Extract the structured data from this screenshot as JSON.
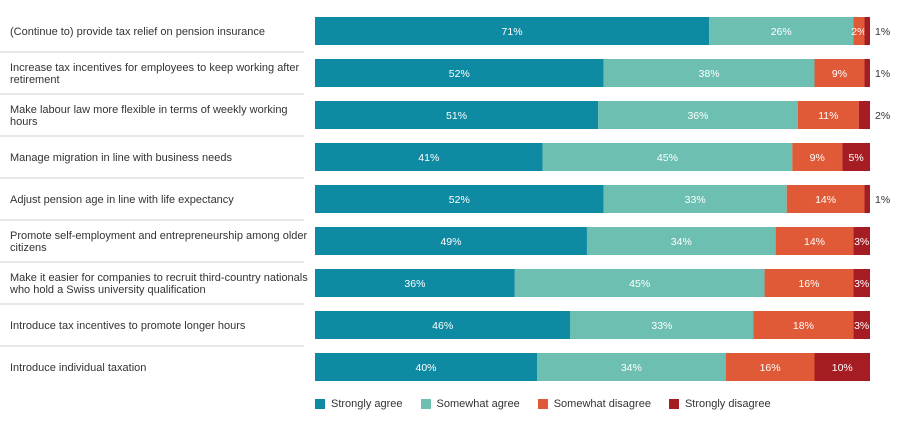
{
  "chart_data": {
    "type": "bar",
    "orientation": "horizontal",
    "stacked": true,
    "categories": [
      "(Continue to) provide tax relief on pension insurance",
      "Increase tax incentives for employees to keep working after retirement",
      "Make labour law more flexible in terms of weekly working hours",
      "Manage migration in line with business needs",
      "Adjust pension age in line with life expectancy",
      "Promote self-employment and entrepreneurship among older citizens",
      "Make it easier for companies to recruit third-country nationals who hold a Swiss university qualification",
      "Introduce tax incentives to promote longer hours",
      "Introduce individual taxation"
    ],
    "category_lines": [
      [
        "(Continue to) provide tax relief on pension insurance"
      ],
      [
        "Increase tax incentives for employees to keep working after",
        "retirement"
      ],
      [
        "Make labour law more flexible in terms of weekly working",
        "hours"
      ],
      [
        "Manage migration in line with business needs"
      ],
      [
        "Adjust pension age in line with life expectancy"
      ],
      [
        "Promote self-employment and entrepreneurship among older",
        "citizens"
      ],
      [
        "Make it easier for companies to recruit third-country nationals",
        "who hold a Swiss  university qualification"
      ],
      [
        "Introduce tax incentives to promote longer hours"
      ],
      [
        "Introduce individual taxation"
      ]
    ],
    "series": [
      {
        "name": "Strongly agree",
        "color": "#0e8ba3",
        "values": [
          71,
          52,
          51,
          41,
          52,
          49,
          36,
          46,
          40
        ]
      },
      {
        "name": "Somewhat agree",
        "color": "#6dbfb2",
        "values": [
          26,
          38,
          36,
          45,
          33,
          34,
          45,
          33,
          34
        ]
      },
      {
        "name": "Somewhat disagree",
        "color": "#e05a37",
        "values": [
          2,
          9,
          11,
          9,
          14,
          14,
          16,
          18,
          16
        ]
      },
      {
        "name": "Strongly disagree",
        "color": "#a51d22",
        "values": [
          1,
          1,
          2,
          5,
          1,
          3,
          3,
          3,
          10
        ]
      }
    ],
    "unit": "%",
    "xlim": [
      0,
      100
    ],
    "legend_position": "bottom"
  }
}
